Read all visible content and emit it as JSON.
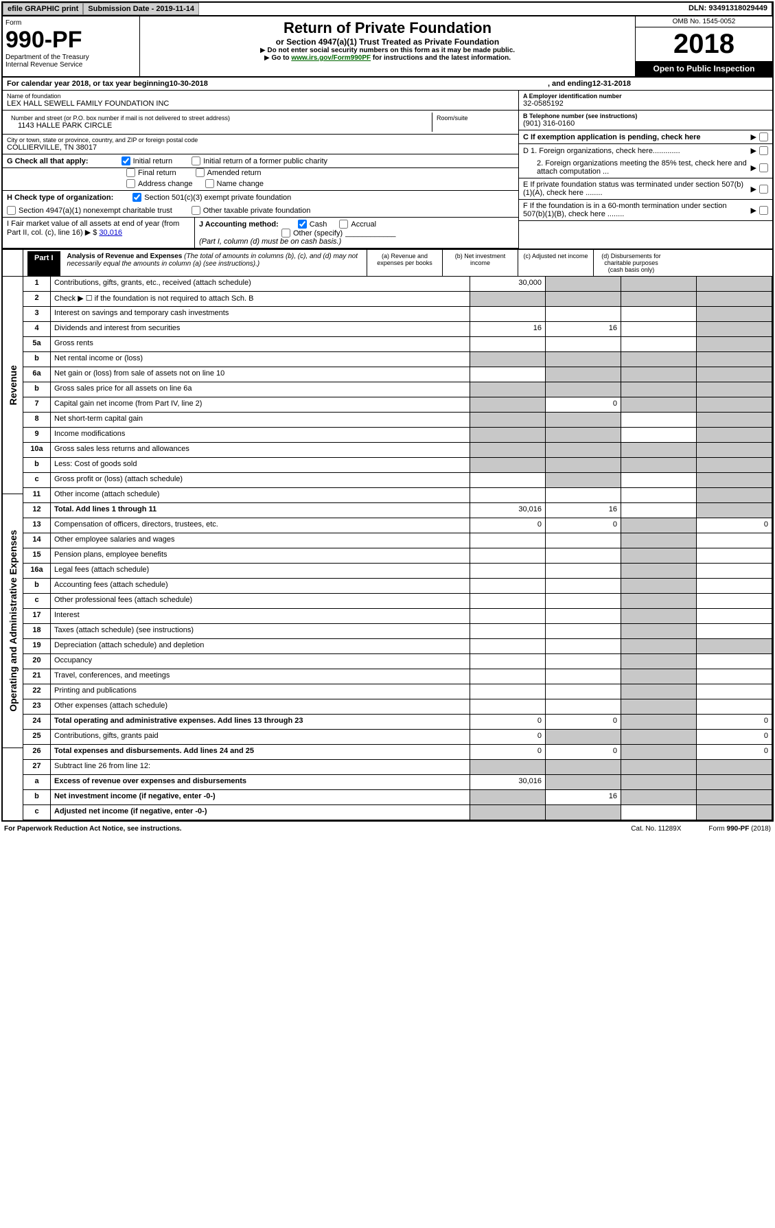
{
  "topbar": {
    "efile": "efile GRAPHIC print",
    "submission": "Submission Date - 2019-11-14",
    "dln": "DLN: 93491318029449"
  },
  "header": {
    "form": "Form",
    "formno": "990-PF",
    "dept": "Department of the Treasury",
    "irs": "Internal Revenue Service",
    "title": "Return of Private Foundation",
    "subtitle": "or Section 4947(a)(1) Trust Treated as Private Foundation",
    "note1": "Do not enter social security numbers on this form as it may be made public.",
    "note2_pre": "Go to ",
    "note2_link": "www.irs.gov/Form990PF",
    "note2_post": " for instructions and the latest information.",
    "omb": "OMB No. 1545-0052",
    "year": "2018",
    "inspection": "Open to Public Inspection"
  },
  "cal": {
    "text_a": "For calendar year 2018, or tax year beginning ",
    "begin": "10-30-2018",
    "text_b": ", and ending ",
    "end": "12-31-2018"
  },
  "info": {
    "name_lbl": "Name of foundation",
    "name": "LEX HALL SEWELL FAMILY FOUNDATION INC",
    "addr_lbl": "Number and street (or P.O. box number if mail is not delivered to street address)",
    "room_lbl": "Room/suite",
    "addr": "1143 HALLE PARK CIRCLE",
    "city_lbl": "City or town, state or province, country, and ZIP or foreign postal code",
    "city": "COLLIERVILLE, TN  38017",
    "ein_lbl": "A Employer identification number",
    "ein": "32-0585192",
    "phone_lbl": "B Telephone number (see instructions)",
    "phone": "(901) 316-0160",
    "c": "C If exemption application is pending, check here",
    "d1": "D 1. Foreign organizations, check here.............",
    "d2": "2. Foreign organizations meeting the 85% test, check here and attach computation ...",
    "e": "E  If private foundation status was terminated under section 507(b)(1)(A), check here ........",
    "f": "F  If the foundation is in a 60-month termination under section 507(b)(1)(B), check here ........",
    "g": "G Check all that apply:",
    "g_initial": "Initial return",
    "g_initial_former": "Initial return of a former public charity",
    "g_final": "Final return",
    "g_amended": "Amended return",
    "g_addr": "Address change",
    "g_name": "Name change",
    "h": "H Check type of organization:",
    "h_501": "Section 501(c)(3) exempt private foundation",
    "h_4947": "Section 4947(a)(1) nonexempt charitable trust",
    "h_other": "Other taxable private foundation",
    "i": "I Fair market value of all assets at end of year (from Part II, col. (c), line 16)",
    "i_val": "30,016",
    "j": "J Accounting method:",
    "j_cash": "Cash",
    "j_accrual": "Accrual",
    "j_other": "Other (specify)",
    "j_note": "(Part I, column (d) must be on cash basis.)"
  },
  "part1": {
    "tab": "Part I",
    "title": "Analysis of Revenue and Expenses",
    "note": " (The total of amounts in columns (b), (c), and (d) may not necessarily equal the amounts in column (a) (see instructions).)",
    "col_a": "(a) Revenue and expenses per books",
    "col_b": "(b) Net investment income",
    "col_c": "(c) Adjusted net income",
    "col_d": "(d) Disbursements for charitable purposes (cash basis only)"
  },
  "side": {
    "rev": "Revenue",
    "exp": "Operating and Administrative Expenses"
  },
  "lines": {
    "l1": {
      "n": "1",
      "t": "Contributions, gifts, grants, etc., received (attach schedule)",
      "a": "30,000"
    },
    "l2": {
      "n": "2",
      "t": "Check ▶ ☐ if the foundation is not required to attach Sch. B"
    },
    "l3": {
      "n": "3",
      "t": "Interest on savings and temporary cash investments"
    },
    "l4": {
      "n": "4",
      "t": "Dividends and interest from securities",
      "a": "16",
      "b": "16"
    },
    "l5a": {
      "n": "5a",
      "t": "Gross rents"
    },
    "l5b": {
      "n": "b",
      "t": "Net rental income or (loss)"
    },
    "l6a": {
      "n": "6a",
      "t": "Net gain or (loss) from sale of assets not on line 10"
    },
    "l6b": {
      "n": "b",
      "t": "Gross sales price for all assets on line 6a"
    },
    "l7": {
      "n": "7",
      "t": "Capital gain net income (from Part IV, line 2)",
      "b": "0"
    },
    "l8": {
      "n": "8",
      "t": "Net short-term capital gain"
    },
    "l9": {
      "n": "9",
      "t": "Income modifications"
    },
    "l10a": {
      "n": "10a",
      "t": "Gross sales less returns and allowances"
    },
    "l10b": {
      "n": "b",
      "t": "Less: Cost of goods sold"
    },
    "l10c": {
      "n": "c",
      "t": "Gross profit or (loss) (attach schedule)"
    },
    "l11": {
      "n": "11",
      "t": "Other income (attach schedule)"
    },
    "l12": {
      "n": "12",
      "t": "Total. Add lines 1 through 11",
      "a": "30,016",
      "b": "16"
    },
    "l13": {
      "n": "13",
      "t": "Compensation of officers, directors, trustees, etc.",
      "a": "0",
      "b": "0",
      "d": "0"
    },
    "l14": {
      "n": "14",
      "t": "Other employee salaries and wages"
    },
    "l15": {
      "n": "15",
      "t": "Pension plans, employee benefits"
    },
    "l16a": {
      "n": "16a",
      "t": "Legal fees (attach schedule)"
    },
    "l16b": {
      "n": "b",
      "t": "Accounting fees (attach schedule)"
    },
    "l16c": {
      "n": "c",
      "t": "Other professional fees (attach schedule)"
    },
    "l17": {
      "n": "17",
      "t": "Interest"
    },
    "l18": {
      "n": "18",
      "t": "Taxes (attach schedule) (see instructions)"
    },
    "l19": {
      "n": "19",
      "t": "Depreciation (attach schedule) and depletion"
    },
    "l20": {
      "n": "20",
      "t": "Occupancy"
    },
    "l21": {
      "n": "21",
      "t": "Travel, conferences, and meetings"
    },
    "l22": {
      "n": "22",
      "t": "Printing and publications"
    },
    "l23": {
      "n": "23",
      "t": "Other expenses (attach schedule)"
    },
    "l24": {
      "n": "24",
      "t": "Total operating and administrative expenses. Add lines 13 through 23",
      "a": "0",
      "b": "0",
      "d": "0"
    },
    "l25": {
      "n": "25",
      "t": "Contributions, gifts, grants paid",
      "a": "0",
      "d": "0"
    },
    "l26": {
      "n": "26",
      "t": "Total expenses and disbursements. Add lines 24 and 25",
      "a": "0",
      "b": "0",
      "d": "0"
    },
    "l27": {
      "n": "27",
      "t": "Subtract line 26 from line 12:"
    },
    "l27a": {
      "n": "a",
      "t": "Excess of revenue over expenses and disbursements",
      "a": "30,016"
    },
    "l27b": {
      "n": "b",
      "t": "Net investment income (if negative, enter -0-)",
      "b": "16"
    },
    "l27c": {
      "n": "c",
      "t": "Adjusted net income (if negative, enter -0-)"
    }
  },
  "footer": {
    "left": "For Paperwork Reduction Act Notice, see instructions.",
    "mid": "Cat. No. 11289X",
    "right": "Form 990-PF (2018)"
  }
}
